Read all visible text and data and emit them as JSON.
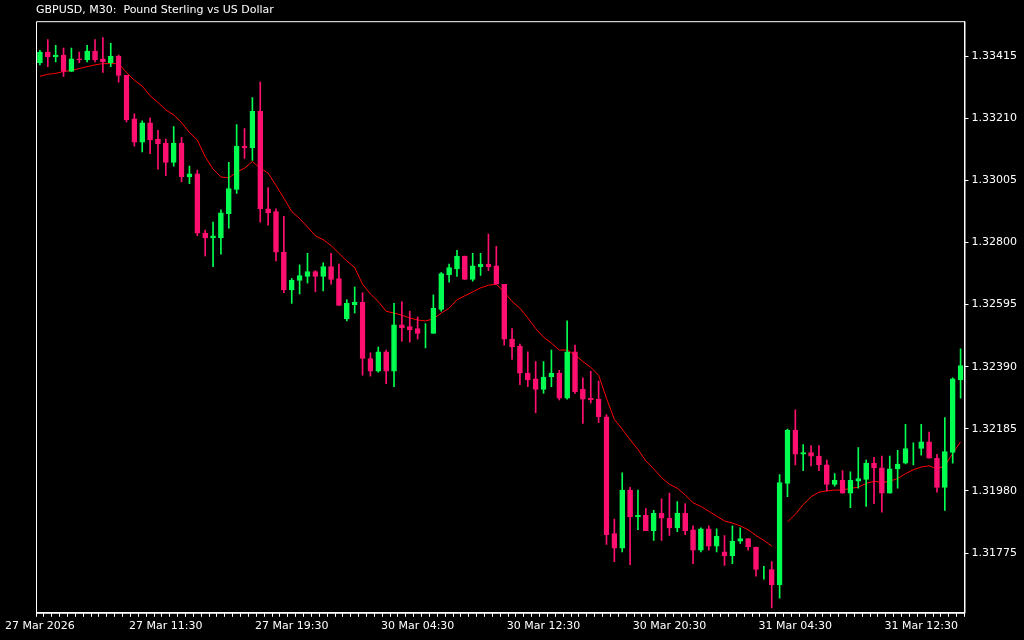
{
  "chart_data": {
    "type": "candlestick",
    "title": "GBPUSD, M30:  Pound Sterling vs US Dollar",
    "categories": [
      "27 Mar 2026",
      null,
      null,
      null,
      null,
      null,
      null,
      null,
      null,
      null,
      null,
      null,
      null,
      null,
      null,
      null,
      "27 Mar 11:30",
      null,
      null,
      null,
      null,
      null,
      null,
      null,
      null,
      null,
      null,
      null,
      null,
      null,
      null,
      null,
      "27 Mar 19:30",
      null,
      null,
      null,
      null,
      null,
      null,
      null,
      null,
      null,
      null,
      null,
      null,
      null,
      null,
      null,
      "30 Mar 04:30",
      null,
      null,
      null,
      null,
      null,
      null,
      null,
      null,
      null,
      null,
      null,
      null,
      null,
      null,
      null,
      "30 Mar 12:30",
      null,
      null,
      null,
      null,
      null,
      null,
      null,
      null,
      null,
      null,
      null,
      null,
      null,
      null,
      null,
      "30 Mar 20:30",
      null,
      null,
      null,
      null,
      null,
      null,
      null,
      null,
      null,
      null,
      null,
      null,
      null,
      null,
      null,
      "31 Mar 04:30",
      null,
      null,
      null,
      null,
      null,
      null,
      null,
      null,
      null,
      null,
      null,
      null,
      null,
      null,
      null,
      "31 Mar 12:30",
      null,
      null,
      null,
      null,
      null
    ],
    "colors": [
      "#00ff50",
      "#ff1070",
      "#00ff50",
      "#ff1070",
      "#00ff50",
      "#ff1070",
      "#00ff50",
      "#ff1070",
      "#ff1070",
      "#00ff50",
      "#ff1070",
      "#ff1070",
      "#ff1070",
      "#00ff50",
      "#ff1070",
      "#ff1070",
      "#ff1070",
      "#00ff50",
      "#ff1070",
      "#00ff50",
      "#ff1070",
      "#ff1070",
      "#00ff50",
      "#00ff50",
      "#00ff50",
      "#00ff50",
      "#ff1070",
      "#00ff50",
      "#ff1070",
      "#ff1070",
      "#ff1070",
      "#ff1070",
      "#00ff50",
      "#00ff50",
      "#00ff50",
      "#ff1070",
      "#00ff50",
      "#ff1070",
      "#ff1070",
      "#00ff50",
      "#00ff50",
      "#ff1070",
      "#ff1070",
      "#00ff50",
      "#ff1070",
      "#00ff50",
      "#ff1070",
      "#ff1070",
      "#ff1070",
      "#00ff50",
      "#00ff50",
      "#00ff50",
      "#00ff50",
      "#00ff50",
      "#ff1070",
      "#00ff50",
      "#00ff50",
      "#ff1070",
      "#ff1070",
      "#ff1070",
      "#ff1070",
      "#ff1070",
      "#ff1070",
      "#ff1070",
      "#00ff50",
      "#00ff50",
      "#ff1070",
      "#00ff50",
      "#ff1070",
      "#ff1070",
      "#ff1070",
      "#ff1070",
      "#ff1070",
      "#ff1070",
      "#00ff50",
      "#ff1070",
      "#00ff50",
      "#ff1070",
      "#00ff50",
      "#ff1070",
      "#ff1070",
      "#00ff50",
      "#ff1070",
      "#ff1070",
      "#00ff50",
      "#ff1070",
      "#00ff50",
      "#ff1070",
      "#00ff50",
      "#00ff50",
      "#ff1070",
      "#ff1070",
      "#00ff50",
      "#ff1070",
      "#00ff50",
      "#00ff50",
      "#ff1070",
      "#00ff50",
      "#ff1070",
      "#ff1070",
      "#ff1070",
      "#00ff50",
      "#ff1070",
      "#00ff50",
      "#00ff50",
      "#00ff50",
      "#ff1070",
      "#ff1070",
      "#00ff50",
      "#00ff50",
      "#00ff50",
      "#00ff50",
      "#00ff50",
      "#ff1070",
      "#ff1070",
      "#00ff50",
      "#00ff50",
      "#00ff50"
    ],
    "ohlc": [
      [
        1.33393,
        1.33434,
        1.33386,
        1.33428
      ],
      [
        1.33428,
        1.33469,
        1.3338,
        1.33412
      ],
      [
        1.33412,
        1.3345,
        1.33396,
        1.33418
      ],
      [
        1.33418,
        1.33441,
        1.33348,
        1.33364
      ],
      [
        1.33364,
        1.33441,
        1.33364,
        1.33406
      ],
      [
        1.33406,
        1.33428,
        1.33393,
        1.33402
      ],
      [
        1.33402,
        1.3345,
        1.33396,
        1.33431
      ],
      [
        1.33431,
        1.33469,
        1.33396,
        1.33402
      ],
      [
        1.33406,
        1.33476,
        1.33361,
        1.33396
      ],
      [
        1.33393,
        1.33457,
        1.3338,
        1.33415
      ],
      [
        1.33415,
        1.33418,
        1.33329,
        1.33351
      ],
      [
        1.33351,
        1.33351,
        1.33198,
        1.33205
      ],
      [
        1.33208,
        1.33224,
        1.33118,
        1.33131
      ],
      [
        1.33131,
        1.33201,
        1.33099,
        1.33195
      ],
      [
        1.33195,
        1.33211,
        1.33093,
        1.33138
      ],
      [
        1.33141,
        1.3317,
        1.33042,
        1.33125
      ],
      [
        1.33128,
        1.33141,
        1.3302,
        1.33064
      ],
      [
        1.33064,
        1.33182,
        1.33052,
        1.33128
      ],
      [
        1.33128,
        1.33147,
        1.33,
        1.33016
      ],
      [
        1.33016,
        1.33052,
        1.32994,
        1.33026
      ],
      [
        1.33026,
        1.33039,
        1.32822,
        1.32831
      ],
      [
        1.32831,
        1.32841,
        1.32755,
        1.32815
      ],
      [
        1.32815,
        1.32867,
        1.3272,
        1.32822
      ],
      [
        1.32815,
        1.32908,
        1.32761,
        1.32898
      ],
      [
        1.32895,
        1.33064,
        1.32847,
        1.32978
      ],
      [
        1.32975,
        1.33189,
        1.32962,
        1.33118
      ],
      [
        1.33118,
        1.33176,
        1.33077,
        1.33112
      ],
      [
        1.33112,
        1.33278,
        1.33071,
        1.33233
      ],
      [
        1.33233,
        1.33329,
        1.32867,
        1.32911
      ],
      [
        1.32911,
        1.32981,
        1.32857,
        1.32898
      ],
      [
        1.32902,
        1.32911,
        1.32739,
        1.32768
      ],
      [
        1.32768,
        1.32886,
        1.32634,
        1.32643
      ],
      [
        1.32643,
        1.32681,
        1.32599,
        1.32675
      ],
      [
        1.32675,
        1.32726,
        1.3263,
        1.32691
      ],
      [
        1.32688,
        1.32764,
        1.32666,
        1.32704
      ],
      [
        1.32704,
        1.32707,
        1.32637,
        1.32688
      ],
      [
        1.32688,
        1.32733,
        1.3264,
        1.3272
      ],
      [
        1.3272,
        1.32764,
        1.32662,
        1.32678
      ],
      [
        1.32681,
        1.32729,
        1.32592,
        1.32592
      ],
      [
        1.32548,
        1.32611,
        1.32541,
        1.32599
      ],
      [
        1.32595,
        1.32653,
        1.32567,
        1.32602
      ],
      [
        1.32602,
        1.32634,
        1.32362,
        1.32417
      ],
      [
        1.32417,
        1.32436,
        1.32359,
        1.32375
      ],
      [
        1.32375,
        1.32455,
        1.32372,
        1.32439
      ],
      [
        1.32439,
        1.32445,
        1.32334,
        1.32375
      ],
      [
        1.32375,
        1.32599,
        1.32324,
        1.32528
      ],
      [
        1.32528,
        1.32605,
        1.32474,
        1.32519
      ],
      [
        1.32522,
        1.32573,
        1.32471,
        1.32512
      ],
      [
        1.32516,
        1.32554,
        1.32481,
        1.325
      ],
      [
        1.32503,
        1.32532,
        1.32452,
        1.32503
      ],
      [
        1.325,
        1.32627,
        1.325,
        1.32583
      ],
      [
        1.32579,
        1.32701,
        1.32573,
        1.32697
      ],
      [
        1.32694,
        1.32729,
        1.32669,
        1.32717
      ],
      [
        1.32713,
        1.32774,
        1.32688,
        1.32755
      ],
      [
        1.32755,
        1.32755,
        1.32678,
        1.32678
      ],
      [
        1.32678,
        1.32764,
        1.32672,
        1.32723
      ],
      [
        1.3272,
        1.32764,
        1.32691,
        1.32729
      ],
      [
        1.32729,
        1.32828,
        1.32707,
        1.3272
      ],
      [
        1.32723,
        1.32787,
        1.32662,
        1.32662
      ],
      [
        1.32662,
        1.32662,
        1.32461,
        1.32481
      ],
      [
        1.32481,
        1.32516,
        1.32414,
        1.32455
      ],
      [
        1.32458,
        1.32465,
        1.32331,
        1.32369
      ],
      [
        1.32369,
        1.32439,
        1.32324,
        1.32346
      ],
      [
        1.3235,
        1.32407,
        1.32238,
        1.32315
      ],
      [
        1.32315,
        1.32407,
        1.32302,
        1.32356
      ],
      [
        1.32356,
        1.32445,
        1.32324,
        1.32369
      ],
      [
        1.32369,
        1.32378,
        1.3228,
        1.32286
      ],
      [
        1.32286,
        1.32541,
        1.32283,
        1.32439
      ],
      [
        1.32439,
        1.32461,
        1.32302,
        1.32308
      ],
      [
        1.32315,
        1.32353,
        1.32203,
        1.32283
      ],
      [
        1.32286,
        1.32375,
        1.3227,
        1.3228
      ],
      [
        1.32283,
        1.32343,
        1.32206,
        1.32225
      ],
      [
        1.32225,
        1.32232,
        1.31804,
        1.31836
      ],
      [
        1.31839,
        1.31887,
        1.31747,
        1.31791
      ],
      [
        1.31791,
        1.3204,
        1.31779,
        1.31983
      ],
      [
        1.31983,
        1.31992,
        1.31737,
        1.31894
      ],
      [
        1.31894,
        1.31983,
        1.31852,
        1.319
      ],
      [
        1.319,
        1.31922,
        1.31849,
        1.31849
      ],
      [
        1.31849,
        1.31916,
        1.31817,
        1.31906
      ],
      [
        1.31906,
        1.31954,
        1.31817,
        1.3189
      ],
      [
        1.3189,
        1.31973,
        1.31833,
        1.31858
      ],
      [
        1.31858,
        1.31945,
        1.31846,
        1.31906
      ],
      [
        1.31906,
        1.31938,
        1.31836,
        1.31849
      ],
      [
        1.31852,
        1.31865,
        1.3174,
        1.31785
      ],
      [
        1.31785,
        1.31858,
        1.31779,
        1.31855
      ],
      [
        1.31855,
        1.31865,
        1.31785,
        1.31798
      ],
      [
        1.31798,
        1.31855,
        1.31779,
        1.3183
      ],
      [
        1.31779,
        1.31833,
        1.31734,
        1.31766
      ],
      [
        1.31766,
        1.31865,
        1.3174,
        1.31814
      ],
      [
        1.31814,
        1.31858,
        1.31807,
        1.31823
      ],
      [
        1.31823,
        1.31823,
        1.31785,
        1.31795
      ],
      [
        1.31795,
        1.31795,
        1.31699,
        1.31721
      ],
      [
        1.31721,
        1.31731,
        1.31689,
        1.31721
      ],
      [
        1.31721,
        1.31747,
        1.31594,
        1.3167
      ],
      [
        1.3167,
        1.32034,
        1.31626,
        1.32008
      ],
      [
        1.32005,
        1.32184,
        1.31961,
        1.32181
      ],
      [
        1.32181,
        1.32248,
        1.32066,
        1.32101
      ],
      [
        1.32101,
        1.32133,
        1.32047,
        1.32107
      ],
      [
        1.32107,
        1.3213,
        1.32063,
        1.32095
      ],
      [
        1.32095,
        1.3213,
        1.32047,
        1.32066
      ],
      [
        1.32066,
        1.32082,
        1.3198,
        1.32002
      ],
      [
        1.32002,
        1.32037,
        1.31996,
        1.32015
      ],
      [
        1.32015,
        1.32047,
        1.31973,
        1.31973
      ],
      [
        1.31973,
        1.32043,
        1.31925,
        1.32015
      ],
      [
        1.32012,
        1.32123,
        1.31989,
        1.32021
      ],
      [
        1.32018,
        1.32082,
        1.31929,
        1.32072
      ],
      [
        1.32072,
        1.32091,
        1.31938,
        1.32056
      ],
      [
        1.32056,
        1.32095,
        1.3191,
        1.31973
      ],
      [
        1.31973,
        1.32095,
        1.31973,
        1.32053
      ],
      [
        1.32053,
        1.32114,
        1.31989,
        1.32069
      ],
      [
        1.32072,
        1.322,
        1.32069,
        1.3212
      ],
      [
        1.3212,
        1.32139,
        1.32066,
        1.3212
      ],
      [
        1.3212,
        1.322,
        1.32098,
        1.32142
      ],
      [
        1.32142,
        1.32174,
        1.32088,
        1.32088
      ],
      [
        1.32088,
        1.32101,
        1.31976,
        1.31992
      ],
      [
        1.31992,
        1.32222,
        1.31916,
        1.3211
      ],
      [
        1.32107,
        1.32353,
        1.32072,
        1.3235
      ],
      [
        1.32346,
        1.32449,
        1.32286,
        1.32394
      ]
    ],
    "series": [
      {
        "type": "line",
        "color": "#ff0000",
        "values": [
          1.33348,
          1.33355,
          1.33358,
          1.33364,
          1.33367,
          1.33374,
          1.3338,
          1.33386,
          1.3339,
          1.3339,
          1.3339,
          1.33361,
          1.33335,
          1.33316,
          1.33284,
          1.33262,
          1.33237,
          1.33221,
          1.33195,
          1.33163,
          1.33138,
          1.33083,
          1.33042,
          1.33016,
          1.33013,
          1.33032,
          1.33045,
          1.33067,
          1.33045,
          1.33029,
          1.32988,
          1.32946,
          1.32902,
          1.32879,
          1.32851,
          1.32822,
          1.32809,
          1.3279,
          1.32764,
          1.32739,
          1.32717,
          1.32662,
          1.3263,
          1.32605,
          1.32573,
          1.32567,
          1.3256,
          1.32551,
          1.32544,
          1.32541,
          1.32548,
          1.32567,
          1.32583,
          1.32611,
          1.32624,
          1.32637,
          1.3265,
          1.32659,
          1.32662,
          1.32637,
          1.32605,
          1.32583,
          1.32551,
          1.32516,
          1.32487,
          1.32468,
          1.32445,
          1.32445,
          1.32429,
          1.32407,
          1.32388,
          1.32362,
          1.32286,
          1.32216,
          1.32184,
          1.32149,
          1.32117,
          1.32079,
          1.32053,
          1.32024,
          1.32002,
          1.31989,
          1.31967,
          1.31941,
          1.31929,
          1.31913,
          1.31897,
          1.31881,
          1.31874,
          1.31865,
          1.31852,
          1.31833,
          1.31817,
          1.31798,
          null,
          1.31878,
          1.31903,
          1.31935,
          1.31961,
          1.31976,
          1.3198,
          1.31983,
          1.31983,
          1.31989,
          1.31992,
          1.32005,
          1.32012,
          1.32008,
          1.32012,
          1.32021,
          1.32037,
          1.3205,
          1.32059,
          1.32063,
          1.32053,
          1.32063,
          1.32104,
          1.32142
        ]
      }
    ],
    "ylim": [
      1.31578,
      1.3353
    ],
    "yticks": [
      1.31775,
      {
        "value": 1.3198,
        "label": "1.31980"
      },
      1.32185,
      {
        "value": 1.3239,
        "label": "1.32390"
      },
      1.32595,
      {
        "value": 1.328,
        "label": "1.32800"
      },
      1.33005,
      {
        "value": 1.3321,
        "label": "1.33210"
      },
      1.33415
    ]
  }
}
